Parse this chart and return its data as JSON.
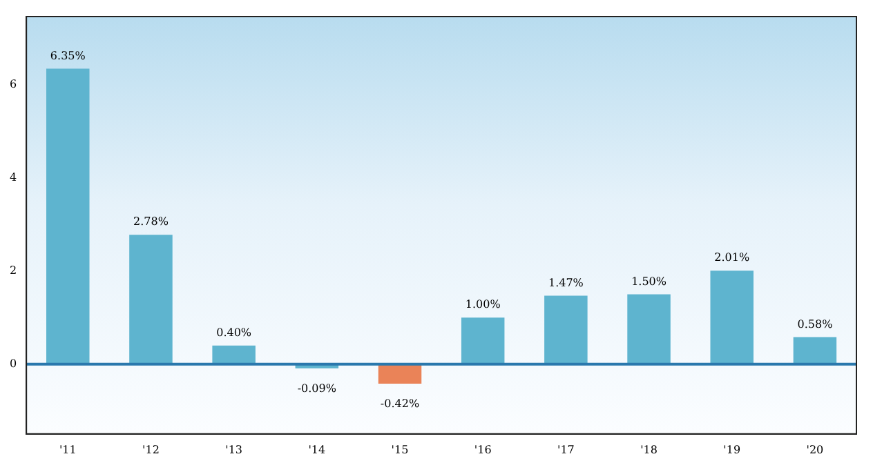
{
  "chart_data": {
    "type": "bar",
    "categories": [
      "'11",
      "'12",
      "'13",
      "'14",
      "'15",
      "'16",
      "'17",
      "'18",
      "'19",
      "'20"
    ],
    "values": [
      6.35,
      2.78,
      0.4,
      -0.09,
      -0.42,
      1.0,
      1.47,
      1.5,
      2.01,
      0.58
    ],
    "colors": [
      "#5eb4cf",
      "#5eb4cf",
      "#5eb4cf",
      "#5eb4cf",
      "#ea8358",
      "#5eb4cf",
      "#5eb4cf",
      "#5eb4cf",
      "#5eb4cf",
      "#5eb4cf"
    ],
    "value_labels": [
      "6.35%",
      "2.78%",
      "0.40%",
      "-0.09%",
      "-0.42%",
      "1.00%",
      "1.47%",
      "1.50%",
      "2.01%",
      "0.58%"
    ],
    "ylim": [
      -1.5,
      7.47
    ],
    "yticks": [
      0,
      2,
      4,
      6
    ],
    "ref_lines": [
      {
        "axis": "y",
        "value": 0,
        "color": "#2a78ad"
      }
    ],
    "grid": false,
    "legend": false
  }
}
